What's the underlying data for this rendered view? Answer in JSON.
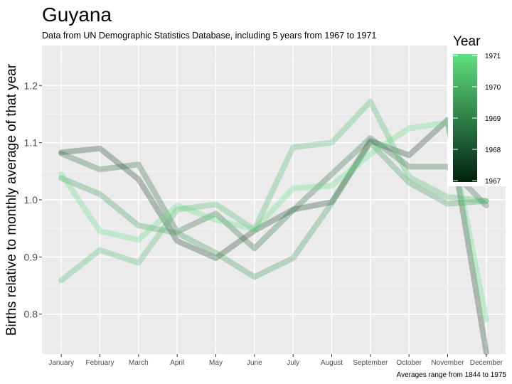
{
  "chart_data": {
    "type": "line",
    "title": "Guyana",
    "subtitle": "Data from UN Demographic Statistics Database, including 5 years from 1967 to 1971",
    "xlabel": "",
    "ylabel": "Births relative to monthly average of that year",
    "caption": "Averages range from 1844 to 1975",
    "categories": [
      "January",
      "February",
      "March",
      "April",
      "May",
      "June",
      "July",
      "August",
      "September",
      "October",
      "November",
      "December"
    ],
    "y_ticks": [
      "0.8",
      "0.9",
      "1.0",
      "1.1",
      "1.2"
    ],
    "ylim": [
      0.73,
      1.27
    ],
    "grid": true,
    "legend": {
      "title": "Year",
      "placement": "right",
      "type": "colorbar",
      "ticks": [
        "1971",
        "1970",
        "1969",
        "1968",
        "1967"
      ],
      "low_color": "#002010",
      "high_color": "#5fe07f"
    },
    "series": [
      {
        "year": 1967,
        "color": "#1c3f28",
        "values": [
          1.083,
          1.09,
          1.036,
          0.928,
          0.898,
          0.946,
          0.983,
          0.996,
          1.103,
          1.078,
          1.14,
          0.733
        ]
      },
      {
        "year": 1968,
        "color": "#2c6a3e",
        "values": [
          1.081,
          1.053,
          1.062,
          0.944,
          0.976,
          0.915,
          0.982,
          1.045,
          1.108,
          1.058,
          1.058,
          0.99
        ]
      },
      {
        "year": 1969,
        "color": "#3b9454",
        "values": [
          1.038,
          1.01,
          0.955,
          0.942,
          0.907,
          0.865,
          0.898,
          0.994,
          1.1,
          1.03,
          0.993,
          0.998
        ]
      },
      {
        "year": 1970,
        "color": "#4ab86a",
        "values": [
          0.859,
          0.912,
          0.89,
          0.983,
          0.992,
          0.948,
          1.092,
          1.1,
          1.172,
          1.04,
          1.005,
          0.998
        ]
      },
      {
        "year": 1971,
        "color": "#5ddf80",
        "values": [
          1.045,
          0.945,
          0.93,
          0.99,
          0.965,
          0.948,
          1.02,
          1.025,
          1.08,
          1.125,
          1.135,
          0.79
        ]
      }
    ]
  }
}
